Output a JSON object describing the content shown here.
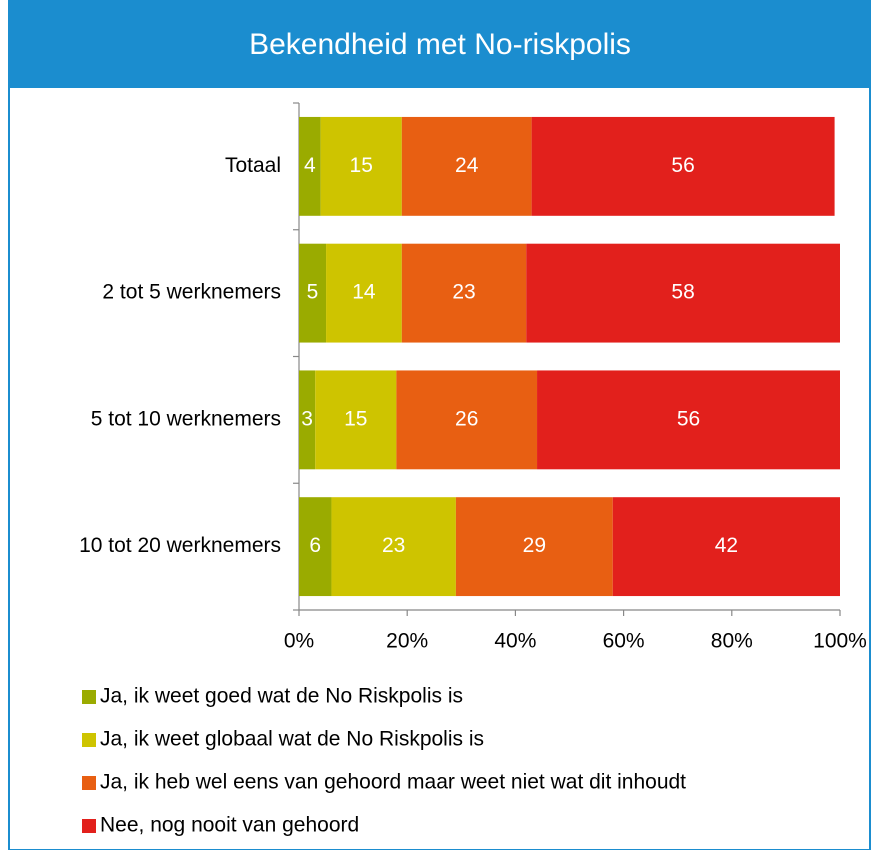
{
  "chart_data": {
    "type": "stacked-bar-horizontal",
    "title": "Bekendheid met No-riskpolis",
    "categories": [
      "Totaal",
      "2 tot 5 werknemers",
      "5 tot 10 werknemers",
      "10 tot 20 werknemers"
    ],
    "series": [
      {
        "name": "Ja, ik weet goed wat de No Riskpolis is",
        "color": "#9aab00",
        "values": [
          4,
          5,
          3,
          6
        ]
      },
      {
        "name": "Ja, ik weet globaal wat de No Riskpolis is",
        "color": "#cec400",
        "values": [
          15,
          14,
          15,
          23
        ]
      },
      {
        "name": "Ja, ik heb wel eens van gehoord maar weet niet wat dit inhoudt",
        "color": "#e85f12",
        "values": [
          24,
          23,
          26,
          29
        ]
      },
      {
        "name": "Nee, nog nooit van gehoord",
        "color": "#e2201c",
        "values": [
          56,
          58,
          56,
          42
        ]
      }
    ],
    "xlim": [
      0,
      100
    ],
    "xticks": [
      {
        "value": 0,
        "label": "0%"
      },
      {
        "value": 20,
        "label": "20%"
      },
      {
        "value": 40,
        "label": "40%"
      },
      {
        "value": 60,
        "label": "60%"
      },
      {
        "value": 80,
        "label": "80%"
      },
      {
        "value": 100,
        "label": "100%"
      }
    ],
    "legend": "bottom"
  }
}
